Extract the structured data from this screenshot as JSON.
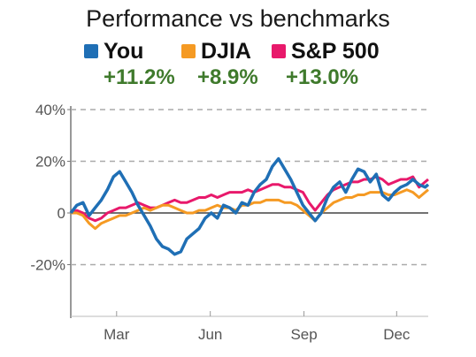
{
  "chart_data": {
    "type": "line",
    "title": "Performance vs benchmarks",
    "x_ticks": [
      "Mar",
      "Jun",
      "Sep",
      "Dec"
    ],
    "x_tick_days": [
      59,
      151,
      243,
      334
    ],
    "x_range_days": [
      14,
      365
    ],
    "y_ticks": [
      {
        "value": 40,
        "label": "40%"
      },
      {
        "value": 20,
        "label": "20%"
      },
      {
        "value": 0,
        "label": "0"
      },
      {
        "value": -20,
        "label": "-20%"
      }
    ],
    "ylim": [
      -40,
      40
    ],
    "grid": true,
    "legend_position": "top",
    "series": [
      {
        "name": "You",
        "change": "+11.2%",
        "color": "#1f6fb5",
        "x": [
          14,
          20,
          26,
          32,
          38,
          44,
          50,
          56,
          62,
          68,
          74,
          80,
          86,
          92,
          98,
          104,
          110,
          116,
          122,
          128,
          134,
          140,
          146,
          152,
          158,
          164,
          170,
          176,
          182,
          188,
          194,
          200,
          206,
          212,
          218,
          224,
          230,
          236,
          242,
          248,
          254,
          260,
          266,
          272,
          278,
          284,
          290,
          296,
          302,
          308,
          314,
          320,
          326,
          332,
          338,
          344,
          350,
          356,
          362,
          365
        ],
        "values": [
          0,
          3,
          4,
          -1,
          2,
          5,
          9,
          14,
          16,
          12,
          8,
          3,
          -1,
          -5,
          -10,
          -13,
          -14,
          -16,
          -15,
          -10,
          -8,
          -6,
          -2,
          0,
          -2,
          3,
          2,
          0,
          4,
          3,
          8,
          11,
          13,
          18,
          21,
          17,
          13,
          8,
          3,
          0,
          -3,
          0,
          6,
          10,
          12,
          8,
          13,
          17,
          16,
          12,
          15,
          7,
          5,
          8,
          10,
          11,
          13,
          11,
          10,
          11
        ]
      },
      {
        "name": "DJIA",
        "change": "+8.9%",
        "color": "#f59a23",
        "x": [
          14,
          20,
          26,
          32,
          38,
          44,
          50,
          56,
          62,
          68,
          74,
          80,
          86,
          92,
          98,
          104,
          110,
          116,
          122,
          128,
          134,
          140,
          146,
          152,
          158,
          164,
          170,
          176,
          182,
          188,
          194,
          200,
          206,
          212,
          218,
          224,
          230,
          236,
          242,
          248,
          254,
          260,
          266,
          272,
          278,
          284,
          290,
          296,
          302,
          308,
          314,
          320,
          326,
          332,
          338,
          344,
          350,
          356,
          362,
          365
        ],
        "values": [
          0,
          0,
          -1,
          -4,
          -6,
          -4,
          -3,
          -2,
          -1,
          -1,
          0,
          1,
          2,
          1,
          2,
          3,
          3,
          2,
          1,
          0,
          0,
          1,
          1,
          2,
          3,
          2,
          2,
          1,
          3,
          3,
          4,
          4,
          5,
          5,
          5,
          4,
          4,
          3,
          1,
          -1,
          -3,
          0,
          2,
          4,
          5,
          6,
          6,
          7,
          7,
          8,
          8,
          8,
          7,
          7,
          8,
          9,
          8,
          6,
          8,
          9
        ]
      },
      {
        "name": "S&P 500",
        "change": "+13.0%",
        "color": "#e8196b",
        "x": [
          14,
          20,
          26,
          32,
          38,
          44,
          50,
          56,
          62,
          68,
          74,
          80,
          86,
          92,
          98,
          104,
          110,
          116,
          122,
          128,
          134,
          140,
          146,
          152,
          158,
          164,
          170,
          176,
          182,
          188,
          194,
          200,
          206,
          212,
          218,
          224,
          230,
          236,
          242,
          248,
          254,
          260,
          266,
          272,
          278,
          284,
          290,
          296,
          302,
          308,
          314,
          320,
          326,
          332,
          338,
          344,
          350,
          356,
          362,
          365
        ],
        "values": [
          0,
          1,
          0,
          -2,
          -3,
          -2,
          0,
          1,
          2,
          2,
          3,
          4,
          3,
          2,
          2,
          3,
          4,
          5,
          4,
          4,
          5,
          6,
          6,
          7,
          6,
          7,
          8,
          8,
          8,
          9,
          8,
          9,
          10,
          11,
          11,
          10,
          10,
          9,
          8,
          4,
          1,
          4,
          7,
          9,
          10,
          11,
          12,
          12,
          13,
          13,
          14,
          13,
          11,
          12,
          13,
          13,
          14,
          10,
          12,
          13
        ]
      }
    ]
  }
}
